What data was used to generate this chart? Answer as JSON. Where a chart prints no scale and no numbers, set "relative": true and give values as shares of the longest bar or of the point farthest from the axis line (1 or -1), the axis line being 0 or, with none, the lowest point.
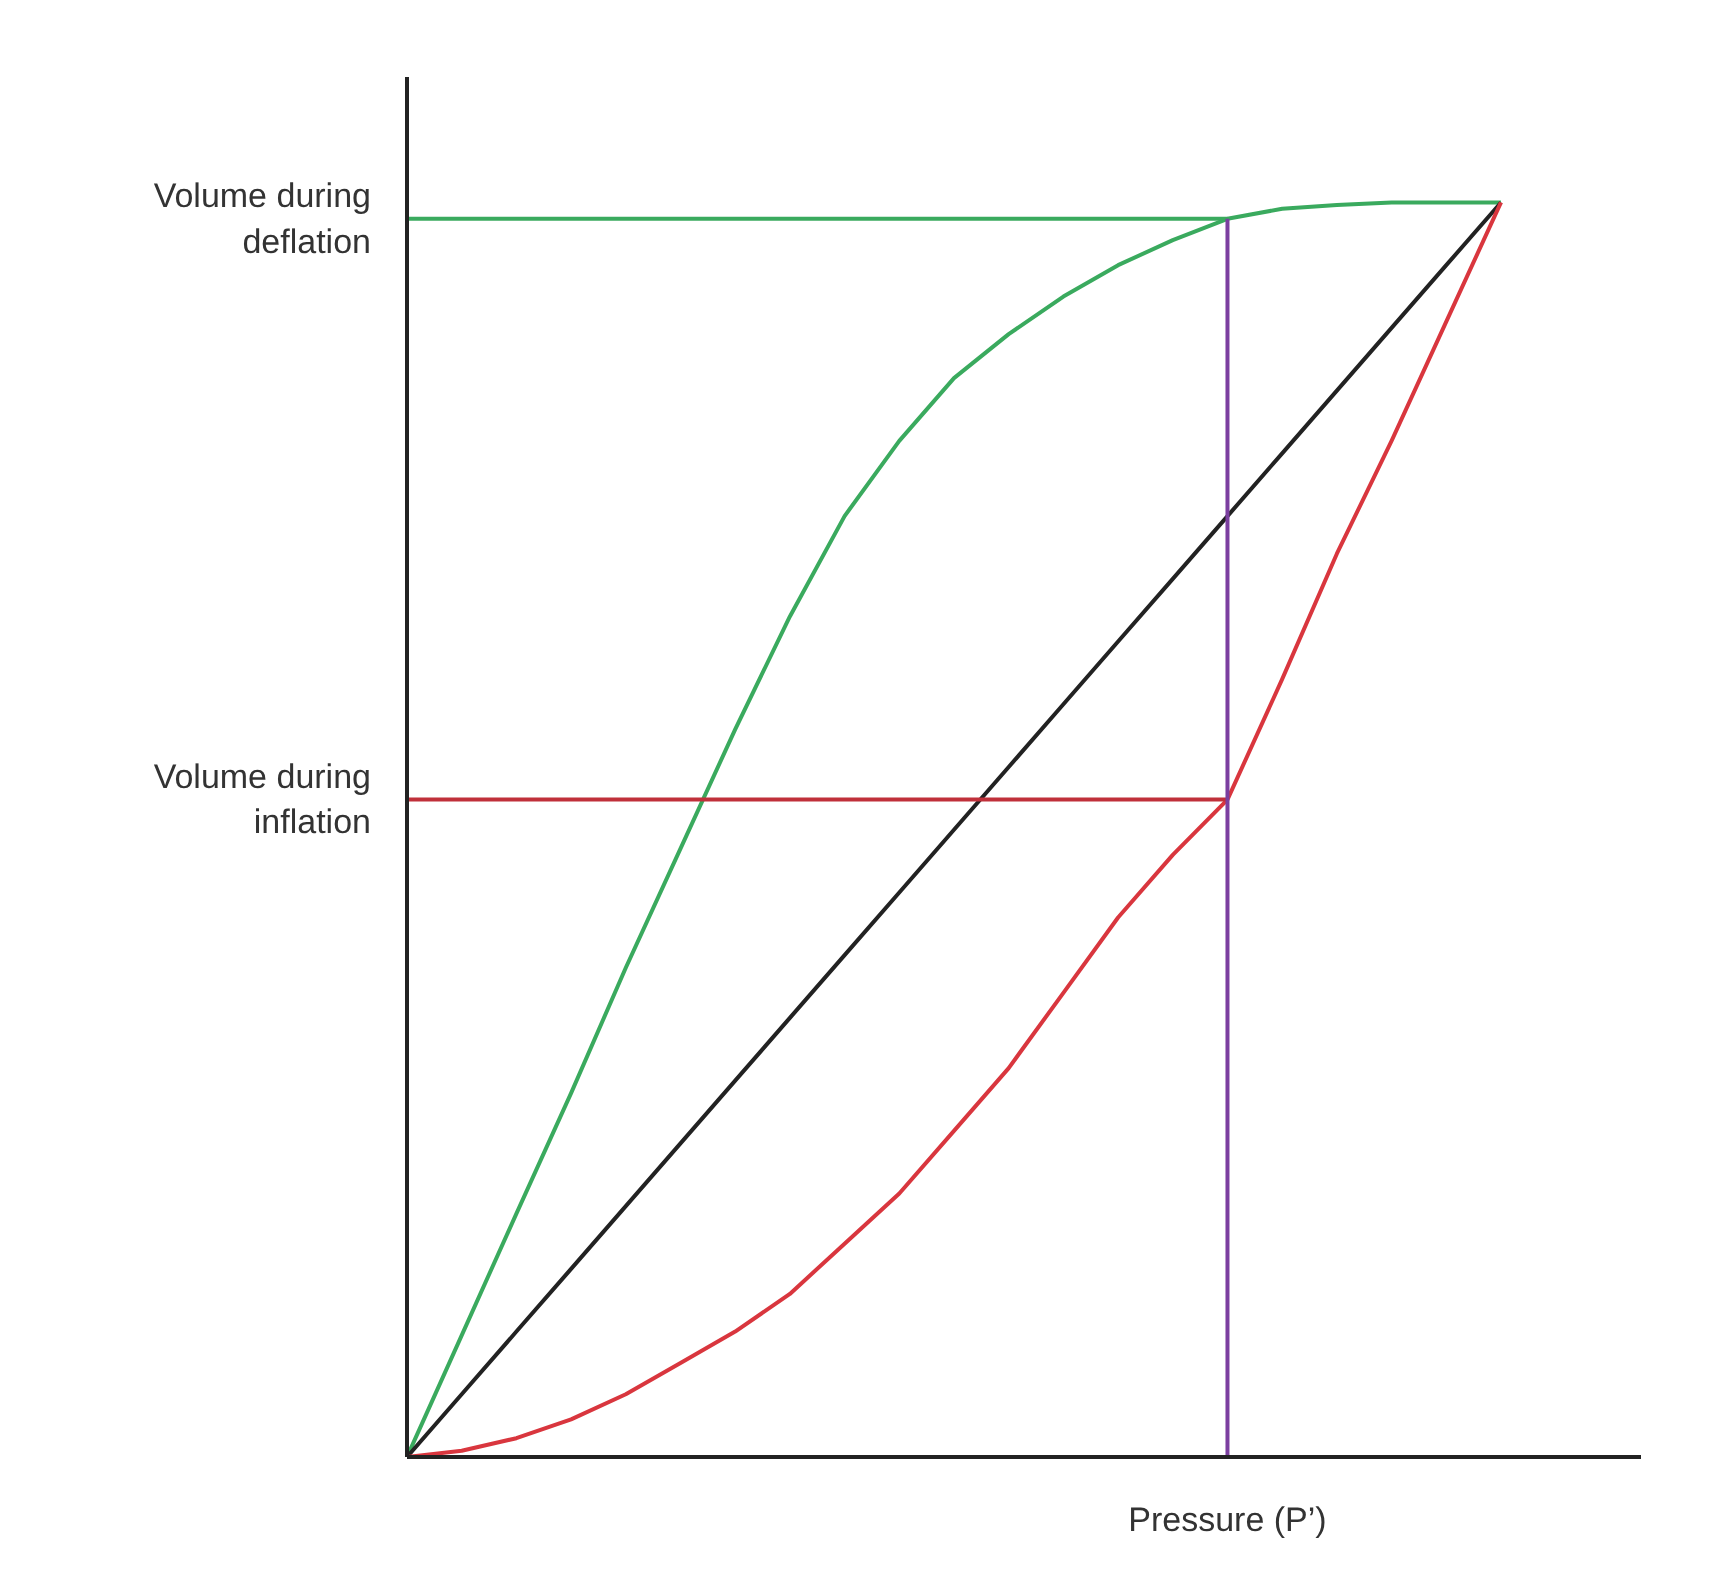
{
  "chart_data": {
    "type": "line",
    "relative": true,
    "xlabel": "Pressure (P’)",
    "categories": [
      null,
      null,
      null,
      null,
      null,
      null,
      null,
      null,
      null,
      null,
      null,
      null,
      null,
      null,
      null,
      null,
      null,
      null,
      null,
      null,
      null
    ],
    "series": [
      {
        "color": "#3aaa5e",
        "values": [
          0,
          0.097,
          0.194,
          0.29,
          0.39,
          0.485,
          0.58,
          0.67,
          0.75,
          0.81,
          0.86,
          0.895,
          0.925,
          0.95,
          0.97,
          0.987,
          0.995,
          0.998,
          1.0,
          1.0,
          1.0
        ]
      },
      {
        "color": "#222222",
        "values": [
          0,
          0.05,
          0.1,
          0.15,
          0.2,
          0.25,
          0.3,
          0.35,
          0.4,
          0.45,
          0.5,
          0.55,
          0.6,
          0.65,
          0.7,
          0.75,
          0.8,
          0.85,
          0.9,
          0.95,
          1.0
        ]
      },
      {
        "color": "#d9363e",
        "values": [
          0,
          0.005,
          0.015,
          0.03,
          0.05,
          0.075,
          0.1,
          0.13,
          0.17,
          0.21,
          0.26,
          0.31,
          0.37,
          0.43,
          0.48,
          0.524,
          0.62,
          0.72,
          0.81,
          0.905,
          1.0
        ]
      }
    ],
    "ref_lines": [
      {
        "axis": "y",
        "value": 0.987,
        "label": "Volume during deflation",
        "color": "#3aaa5e"
      },
      {
        "axis": "y",
        "value": 0.524,
        "label": "Volume during inflation",
        "color": "#c0303a"
      }
    ],
    "marker": "none",
    "line_style": "solid",
    "grid": false
  }
}
